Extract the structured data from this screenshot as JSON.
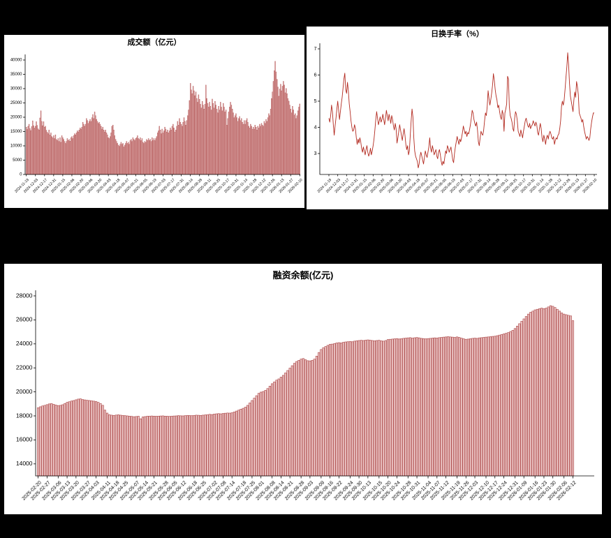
{
  "page": {
    "background": "#000000",
    "panel_background": "#ffffff"
  },
  "chart_data": [
    {
      "id": "volume",
      "type": "bar",
      "title": "成交额（亿元）",
      "xlabel": "",
      "ylabel": "",
      "grid": false,
      "legend": null,
      "ylim": [
        0,
        40000
      ],
      "y_ticks": [
        0,
        5000,
        10000,
        15000,
        20000,
        25000,
        30000,
        35000,
        40000
      ],
      "bar_fill": "#e9c2c2",
      "bar_edge": "#b25454",
      "axis_color": "#000000",
      "x_labels": [
        "2024-11-19",
        "2024-12-03",
        "2024-12-17",
        "2024-12-31",
        "2025-01-15",
        "2025-02-06",
        "2025-02-20",
        "2025-03-06",
        "2025-03-20",
        "2025-04-03",
        "2025-04-18",
        "2025-05-07",
        "2025-05-21",
        "2025-06-05",
        "2025-06-19",
        "2025-07-03",
        "2025-07-17",
        "2025-07-31",
        "2025-08-14",
        "2025-08-28",
        "2025-09-11",
        "2025-09-25",
        "2025-10-17",
        "2025-10-31",
        "2025-11-14",
        "2025-11-28",
        "2025-12-12",
        "2025-12-26",
        "2026-01-13",
        "2026-01-27",
        "2026-02-10"
      ],
      "values": [
        16600,
        15800,
        16900,
        17600,
        16100,
        15400,
        16800,
        18800,
        17100,
        16300,
        16900,
        18500,
        17200,
        16000,
        15600,
        19800,
        22300,
        18600,
        17100,
        18500,
        16600,
        16900,
        15500,
        14800,
        14300,
        15600,
        13900,
        14600,
        13300,
        12900,
        13600,
        12600,
        13900,
        12300,
        11900,
        12600,
        11600,
        12900,
        11300,
        13600,
        12900,
        12300,
        11600,
        10900,
        11600,
        12600,
        11900,
        12300,
        11700,
        12900,
        13300,
        12600,
        13600,
        14300,
        13900,
        14600,
        15300,
        14900,
        15600,
        16300,
        15900,
        16600,
        18300,
        17600,
        16900,
        17600,
        19600,
        18900,
        17900,
        18600,
        19300,
        18600,
        19900,
        21000,
        19600,
        21900,
        20600,
        19300,
        18600,
        17900,
        18300,
        17600,
        16900,
        15900,
        16600,
        15600,
        14900,
        15600,
        14600,
        13900,
        12900,
        12600,
        13300,
        14600,
        16900,
        17300,
        15600,
        13600,
        12300,
        11600,
        10900,
        10300,
        9900,
        10600,
        11300,
        10600,
        10900,
        9700,
        10300,
        10900,
        11600,
        10900,
        11300,
        10600,
        11900,
        12300,
        11600,
        12900,
        12300,
        11900,
        12600,
        12900,
        13600,
        12600,
        12300,
        12900,
        11900,
        12600,
        11300,
        10900,
        11600,
        11300,
        12300,
        11900,
        12600,
        11900,
        12300,
        11600,
        12900,
        11900,
        12600,
        11900,
        12600,
        13300,
        14600,
        15300,
        16900,
        15600,
        14300,
        15900,
        14600,
        15300,
        16600,
        15900,
        14900,
        15600,
        14600,
        15300,
        16300,
        15600,
        16900,
        17600,
        16300,
        14900,
        15600,
        16900,
        18600,
        17300,
        19600,
        18300,
        17600,
        16900,
        18300,
        19900,
        18600,
        17300,
        18900,
        20600,
        22600,
        25900,
        31900,
        29600,
        28300,
        30900,
        29300,
        27600,
        28900,
        26600,
        25300,
        27900,
        26300,
        24600,
        23300,
        25600,
        24300,
        22900,
        24600,
        31300,
        26600,
        24900,
        23600,
        25300,
        23900,
        22600,
        26400,
        24900,
        23300,
        25600,
        24300,
        22900,
        21600,
        23900,
        22600,
        25300,
        23600,
        22300,
        24900,
        23600,
        21900,
        22600,
        17300,
        19600,
        21900,
        23600,
        25300,
        24300,
        22900,
        21600,
        19900,
        20600,
        21300,
        19900,
        18600,
        19600,
        20300,
        18900,
        19600,
        18300,
        17600,
        18900,
        17600,
        18900,
        19600,
        18300,
        16900,
        16300,
        17600,
        16900,
        15900,
        16600,
        15900,
        17300,
        16600,
        15600,
        16900,
        16300,
        17600,
        16900,
        17900,
        17300,
        16900,
        18600,
        17900,
        19300,
        18600,
        19900,
        21300,
        20600,
        22900,
        26600,
        28900,
        32600,
        36300,
        39600,
        35900,
        33300,
        30600,
        27400,
        29900,
        31600,
        29300,
        30900,
        32600,
        31300,
        28600,
        30100,
        28300,
        26600,
        25700,
        24300,
        22900,
        21600,
        23900,
        22600,
        20800,
        21300,
        19600,
        20600,
        22300,
        23600,
        24700
      ]
    },
    {
      "id": "turnover",
      "type": "line",
      "title": "日换手率（%）",
      "xlabel": "",
      "ylabel": "",
      "grid": false,
      "legend": null,
      "ylim": [
        2.2,
        7.0
      ],
      "y_ticks": [
        3,
        4,
        5,
        6,
        7
      ],
      "line_color": "#b2281e",
      "axis_color": "#000000",
      "x_labels": [
        "2024-11-19",
        "2024-12-03",
        "2024-12-17",
        "2024-12-31",
        "2025-01-15",
        "2025-02-06",
        "2025-02-20",
        "2025-03-06",
        "2025-03-20",
        "2025-04-03",
        "2025-04-18",
        "2025-05-07",
        "2025-05-21",
        "2025-06-05",
        "2025-06-19",
        "2025-07-03",
        "2025-07-17",
        "2025-07-31",
        "2025-08-14",
        "2025-08-28",
        "2025-09-11",
        "2025-09-25",
        "2025-10-17",
        "2025-10-31",
        "2025-11-14",
        "2025-11-28",
        "2025-12-12",
        "2025-12-26",
        "2026-01-13",
        "2026-01-27",
        "2026-02-10"
      ],
      "values": [
        4.35,
        4.2,
        4.45,
        4.85,
        4.6,
        4.1,
        3.7,
        4.05,
        4.35,
        4.7,
        5.0,
        4.65,
        4.3,
        4.6,
        4.9,
        5.15,
        5.5,
        5.85,
        6.07,
        5.45,
        5.3,
        5.72,
        5.4,
        4.9,
        4.6,
        4.25,
        4.0,
        3.85,
        3.9,
        4.1,
        3.95,
        3.6,
        3.35,
        3.55,
        3.4,
        3.6,
        3.45,
        3.2,
        3.05,
        3.25,
        3.1,
        2.95,
        3.15,
        3.3,
        3.05,
        2.9,
        3.0,
        3.2,
        2.95,
        3.1,
        3.3,
        3.55,
        3.9,
        4.3,
        4.6,
        4.35,
        4.1,
        4.25,
        4.4,
        4.2,
        4.3,
        4.5,
        4.3,
        4.1,
        4.35,
        4.65,
        4.45,
        4.25,
        4.5,
        4.35,
        4.15,
        4.45,
        4.3,
        4.05,
        3.9,
        4.15,
        3.95,
        3.4,
        3.6,
        3.85,
        4.1,
        3.9,
        3.7,
        3.5,
        3.75,
        3.95,
        3.7,
        3.35,
        3.15,
        3.3,
        2.95,
        3.1,
        3.7,
        4.25,
        4.7,
        4.4,
        3.6,
        3.1,
        2.9,
        2.8,
        2.7,
        2.45,
        2.6,
        2.9,
        3.05,
        2.9,
        2.75,
        2.6,
        2.85,
        3.1,
        2.95,
        2.85,
        3.05,
        3.25,
        3.6,
        3.2,
        3.05,
        3.3,
        3.15,
        2.95,
        3.05,
        3.15,
        2.9,
        2.8,
        3.05,
        3.15,
        2.95,
        2.7,
        2.55,
        2.7,
        2.6,
        2.85,
        3.1,
        3.0,
        3.3,
        3.2,
        3.05,
        3.15,
        3.25,
        3.0,
        2.75,
        2.65,
        3.0,
        3.25,
        3.45,
        3.65,
        3.5,
        3.35,
        3.55,
        3.45,
        3.6,
        3.8,
        4.05,
        3.9,
        3.75,
        3.85,
        3.65,
        3.8,
        3.75,
        3.9,
        4.1,
        4.35,
        4.65,
        4.55,
        4.3,
        4.15,
        4.05,
        4.2,
        3.9,
        3.45,
        3.3,
        3.6,
        3.85,
        3.75,
        3.7,
        3.9,
        4.25,
        4.55,
        4.45,
        4.8,
        5.4,
        5.1,
        4.85,
        5.05,
        5.3,
        5.6,
        6.05,
        5.8,
        5.45,
        5.2,
        5.05,
        4.75,
        4.85,
        4.6,
        4.4,
        4.3,
        4.65,
        4.5,
        3.85,
        4.55,
        4.7,
        4.9,
        5.95,
        5.85,
        4.8,
        4.45,
        4.35,
        4.2,
        3.95,
        3.85,
        4.35,
        4.6,
        4.5,
        4.25,
        3.85,
        3.75,
        3.65,
        3.9,
        3.75,
        3.6,
        3.85,
        4.05,
        4.25,
        4.35,
        4.2,
        4.05,
        4.0,
        4.15,
        3.95,
        4.05,
        4.1,
        4.25,
        4.15,
        4.05,
        4.2,
        4.1,
        3.8,
        3.7,
        3.95,
        4.15,
        3.95,
        3.6,
        3.45,
        3.7,
        3.55,
        3.35,
        3.6,
        3.7,
        3.55,
        3.75,
        3.85,
        3.75,
        3.6,
        3.55,
        3.65,
        3.35,
        3.5,
        3.6,
        3.55,
        3.7,
        3.75,
        3.95,
        4.25,
        4.8,
        5.0,
        4.85,
        5.05,
        5.45,
        5.9,
        6.3,
        6.85,
        6.4,
        5.7,
        5.2,
        5.0,
        4.8,
        4.6,
        5.05,
        5.35,
        5.15,
        5.75,
        5.55,
        5.25,
        4.55,
        4.45,
        4.35,
        4.2,
        4.3,
        4.05,
        3.85,
        3.7,
        3.55,
        3.65,
        3.6,
        3.5,
        3.6,
        3.95,
        4.2,
        4.4,
        4.55,
        4.55
      ]
    },
    {
      "id": "margin",
      "type": "bar",
      "title": "融资余额(亿元)",
      "xlabel": "",
      "ylabel": "",
      "grid": false,
      "legend": null,
      "ylim": [
        13000,
        28000
      ],
      "y_ticks": [
        14000,
        16000,
        18000,
        20000,
        22000,
        24000,
        26000,
        28000
      ],
      "bar_fill": "#edc9c9",
      "bar_edge": "#b25454",
      "axis_color": "#000000",
      "x_labels": [
        "2025-02-20",
        "2025-02-27",
        "2025-03-06",
        "2025-03-13",
        "2025-03-20",
        "2025-03-27",
        "2025-04-03",
        "2025-04-11",
        "2025-04-18",
        "2025-04-25",
        "2025-05-07",
        "2025-05-14",
        "2025-05-21",
        "2025-05-28",
        "2025-06-05",
        "2025-06-12",
        "2025-06-18",
        "2025-06-25",
        "2025-07-02",
        "2025-07-08",
        "2025-07-14",
        "2025-07-18",
        "2025-07-25",
        "2025-08-01",
        "2025-08-08",
        "2025-08-14",
        "2025-08-21",
        "2025-08-28",
        "2025-09-03",
        "2025-09-09",
        "2025-09-16",
        "2025-09-22",
        "2025-09-24",
        "2025-09-30",
        "2025-10-13",
        "2025-10-15",
        "2025-10-20",
        "2025-10-24",
        "2025-10-28",
        "2025-10-31",
        "2025-11-04",
        "2025-11-07",
        "2025-11-12",
        "2025-11-19",
        "2025-11-26",
        "2025-12-03",
        "2025-12-10",
        "2025-12-17",
        "2025-12-24",
        "2025-12-31",
        "2026-01-09",
        "2026-01-16",
        "2026-01-23",
        "2026-01-30",
        "2026-02-06",
        "2026-02-12"
      ],
      "values": [
        18700,
        18780,
        18850,
        18900,
        18960,
        19020,
        19050,
        18980,
        18920,
        18880,
        18900,
        18950,
        19050,
        19150,
        19200,
        19260,
        19300,
        19360,
        19420,
        19440,
        19380,
        19350,
        19320,
        19300,
        19280,
        19250,
        19220,
        19150,
        19050,
        18900,
        18500,
        18250,
        18120,
        18080,
        18060,
        18090,
        18110,
        18080,
        18060,
        18040,
        18020,
        18000,
        17980,
        17950,
        17970,
        17990,
        17780,
        17930,
        17960,
        17990,
        18000,
        18010,
        18000,
        17990,
        18000,
        18010,
        18020,
        18000,
        17990,
        17980,
        18000,
        18010,
        18020,
        18040,
        18030,
        18020,
        18040,
        18060,
        18050,
        18040,
        18060,
        18080,
        18070,
        18060,
        18080,
        18100,
        18120,
        18150,
        18130,
        18170,
        18190,
        18210,
        18190,
        18220,
        18240,
        18260,
        18250,
        18280,
        18350,
        18420,
        18500,
        18580,
        18650,
        18750,
        18900,
        19100,
        19300,
        19500,
        19700,
        19900,
        20000,
        20050,
        20150,
        20300,
        20500,
        20700,
        20850,
        21000,
        21100,
        21250,
        21400,
        21600,
        21800,
        22000,
        22200,
        22400,
        22550,
        22650,
        22750,
        22800,
        22700,
        22620,
        22600,
        22650,
        22750,
        23000,
        23300,
        23550,
        23700,
        23800,
        23900,
        23980,
        24000,
        24050,
        24100,
        24120,
        24100,
        24150,
        24180,
        24200,
        24220,
        24200,
        24250,
        24280,
        24300,
        24320,
        24300,
        24330,
        24350,
        24330,
        24300,
        24280,
        24300,
        24320,
        24280,
        24250,
        24300,
        24380,
        24400,
        24420,
        24440,
        24460,
        24430,
        24450,
        24480,
        24500,
        24520,
        24540,
        24500,
        24530,
        24550,
        24520,
        24480,
        24460,
        24440,
        24460,
        24480,
        24500,
        24520,
        24510,
        24540,
        24560,
        24580,
        24600,
        24620,
        24600,
        24580,
        24560,
        24600,
        24560,
        24500,
        24440,
        24400,
        24420,
        24450,
        24480,
        24500,
        24480,
        24520,
        24540,
        24560,
        24580,
        24600,
        24620,
        24640,
        24660,
        24700,
        24750,
        24800,
        24850,
        24900,
        24960,
        25050,
        25150,
        25300,
        25500,
        25700,
        25900,
        26100,
        26300,
        26500,
        26650,
        26750,
        26850,
        26900,
        26950,
        27000,
        26950,
        27000,
        27100,
        27200,
        27150,
        27050,
        26900,
        26750,
        26600,
        26500,
        26450,
        26400,
        26350,
        25950
      ]
    }
  ]
}
